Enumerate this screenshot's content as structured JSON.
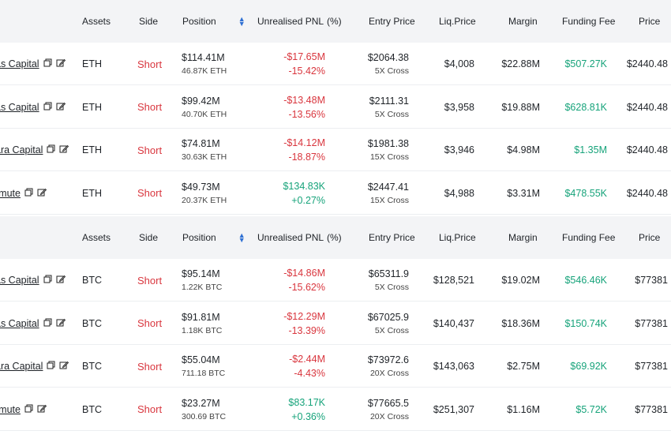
{
  "headers": {
    "assets": "Assets",
    "side": "Side",
    "position": "Position",
    "unrealised_pnl": "Unrealised PNL",
    "pct": "(%)",
    "entry_price": "Entry Price",
    "liq_price": "Liq.Price",
    "margin": "Margin",
    "funding_fee": "Funding Fee",
    "price": "Price"
  },
  "colors": {
    "short": "#d9363e",
    "profit": "#16a37a",
    "loss": "#d9363e",
    "header_bg": "#f3f4f6"
  },
  "eth_rows": [
    {
      "name": "as Capital",
      "asset": "ETH",
      "side": "Short",
      "position": "$114.41M",
      "size": "46.87K ETH",
      "pnl": "-$17.65M",
      "pnl_pct": "-15.42%",
      "pnl_dir": "loss",
      "entry": "$2064.38",
      "leverage": "5X Cross",
      "liq": "$4,008",
      "margin": "$22.88M",
      "fee": "$507.27K",
      "price": "$2440.48"
    },
    {
      "name": "as Capital",
      "asset": "ETH",
      "side": "Short",
      "position": "$99.42M",
      "size": "40.70K ETH",
      "pnl": "-$13.48M",
      "pnl_pct": "-13.56%",
      "pnl_dir": "loss",
      "entry": "$2111.31",
      "leverage": "5X Cross",
      "liq": "$3,958",
      "margin": "$19.88M",
      "fee": "$628.81K",
      "price": "$2440.48"
    },
    {
      "name": "ara Capital",
      "asset": "ETH",
      "side": "Short",
      "position": "$74.81M",
      "size": "30.63K ETH",
      "pnl": "-$14.12M",
      "pnl_pct": "-18.87%",
      "pnl_dir": "loss",
      "entry": "$1981.38",
      "leverage": "15X Cross",
      "liq": "$3,946",
      "margin": "$4.98M",
      "fee": "$1.35M",
      "price": "$2440.48"
    },
    {
      "name": "rmute",
      "asset": "ETH",
      "side": "Short",
      "position": "$49.73M",
      "size": "20.37K ETH",
      "pnl": "$134.83K",
      "pnl_pct": "+0.27%",
      "pnl_dir": "profit",
      "entry": "$2447.41",
      "leverage": "15X Cross",
      "liq": "$4,988",
      "margin": "$3.31M",
      "fee": "$478.55K",
      "price": "$2440.48"
    }
  ],
  "btc_rows": [
    {
      "name": "as Capital",
      "asset": "BTC",
      "side": "Short",
      "position": "$95.14M",
      "size": "1.22K BTC",
      "pnl": "-$14.86M",
      "pnl_pct": "-15.62%",
      "pnl_dir": "loss",
      "entry": "$65311.9",
      "leverage": "5X Cross",
      "liq": "$128,521",
      "margin": "$19.02M",
      "fee": "$546.46K",
      "price": "$77381"
    },
    {
      "name": "as Capital",
      "asset": "BTC",
      "side": "Short",
      "position": "$91.81M",
      "size": "1.18K BTC",
      "pnl": "-$12.29M",
      "pnl_pct": "-13.39%",
      "pnl_dir": "loss",
      "entry": "$67025.9",
      "leverage": "5X Cross",
      "liq": "$140,437",
      "margin": "$18.36M",
      "fee": "$150.74K",
      "price": "$77381"
    },
    {
      "name": "ara Capital",
      "asset": "BTC",
      "side": "Short",
      "position": "$55.04M",
      "size": "711.18 BTC",
      "pnl": "-$2.44M",
      "pnl_pct": "-4.43%",
      "pnl_dir": "loss",
      "entry": "$73972.6",
      "leverage": "20X Cross",
      "liq": "$143,063",
      "margin": "$2.75M",
      "fee": "$69.92K",
      "price": "$77381"
    },
    {
      "name": "rmute",
      "asset": "BTC",
      "side": "Short",
      "position": "$23.27M",
      "size": "300.69 BTC",
      "pnl": "$83.17K",
      "pnl_pct": "+0.36%",
      "pnl_dir": "profit",
      "entry": "$77665.5",
      "leverage": "20X Cross",
      "liq": "$251,307",
      "margin": "$1.16M",
      "fee": "$5.72K",
      "price": "$77381"
    }
  ]
}
